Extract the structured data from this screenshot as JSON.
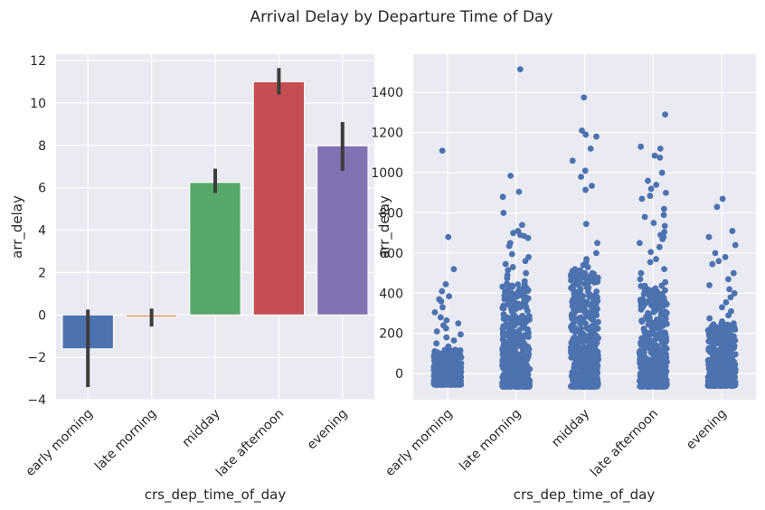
{
  "figure": {
    "title": "Arrival Delay by Departure Time of Day"
  },
  "chart_data": [
    {
      "type": "bar",
      "categories": [
        "early morning",
        "late morning",
        "midday",
        "late afternoon",
        "evening"
      ],
      "values": [
        -1.6,
        -0.1,
        6.25,
        11.0,
        7.98
      ],
      "error_low": [
        -3.4,
        -0.55,
        5.75,
        10.4,
        6.8
      ],
      "error_high": [
        0.25,
        0.3,
        6.9,
        11.65,
        9.1
      ],
      "colors": [
        "#4c72b0",
        "#dd8452",
        "#55a868",
        "#c44e52",
        "#8172b3"
      ],
      "error_color": "#3d3d3d",
      "xlabel": "crs_dep_time_of_day",
      "ylabel": "arr_delay",
      "ylim": [
        -4,
        12.3
      ],
      "yticks": [
        -4,
        -2,
        0,
        2,
        4,
        6,
        8,
        10,
        12
      ],
      "ytick_labels": [
        "−4",
        "−2",
        "0",
        "2",
        "4",
        "6",
        "8",
        "10",
        "12"
      ],
      "grid": true
    },
    {
      "type": "scatter",
      "categories": [
        "early morning",
        "late morning",
        "midday",
        "late afternoon",
        "evening"
      ],
      "color": "#4c72b0",
      "xlabel": "crs_dep_time_of_day",
      "ylabel": "arr_delay",
      "ylim": [
        -130,
        1590
      ],
      "yticks": [
        0,
        200,
        400,
        600,
        800,
        1000,
        1200,
        1400
      ],
      "ytick_labels": [
        "0",
        "200",
        "400",
        "600",
        "800",
        "1000",
        "1200",
        "1400"
      ],
      "grid": true,
      "dense_bands": [
        {
          "category": "early morning",
          "from": -55,
          "to": 120
        },
        {
          "category": "late morning",
          "from": -65,
          "to": 450
        },
        {
          "category": "midday",
          "from": -65,
          "to": 520
        },
        {
          "category": "late afternoon",
          "from": -65,
          "to": 440
        },
        {
          "category": "evening",
          "from": -60,
          "to": 250
        }
      ],
      "outliers": [
        {
          "category": "early morning",
          "values": [
            1110,
            680,
            520,
            445,
            410,
            385,
            370,
            360,
            330,
            305,
            280,
            265,
            250,
            240,
            225,
            210,
            195,
            180,
            165,
            150,
            135
          ]
        },
        {
          "category": "late morning",
          "values": [
            1515,
            985,
            905,
            880,
            800,
            740,
            710,
            700,
            690,
            685,
            675,
            650,
            635,
            595,
            580,
            560,
            545,
            530,
            515,
            500,
            490,
            475,
            460
          ]
        },
        {
          "category": "midday",
          "values": [
            1375,
            1210,
            1190,
            1180,
            1120,
            1060,
            1010,
            980,
            935,
            915,
            745,
            650,
            600,
            570,
            555,
            540,
            530
          ]
        },
        {
          "category": "late afternoon",
          "values": [
            1290,
            1130,
            1120,
            1085,
            1075,
            1000,
            960,
            940,
            920,
            900,
            885,
            870,
            820,
            790,
            780,
            750,
            735,
            705,
            690,
            680,
            670,
            650,
            630,
            605,
            570,
            555,
            520,
            500,
            470,
            455
          ]
        },
        {
          "category": "evening",
          "values": [
            870,
            830,
            710,
            680,
            640,
            600,
            580,
            560,
            545,
            500,
            470,
            440,
            420,
            400,
            380,
            355,
            330,
            310,
            290,
            275,
            260
          ]
        }
      ]
    }
  ]
}
